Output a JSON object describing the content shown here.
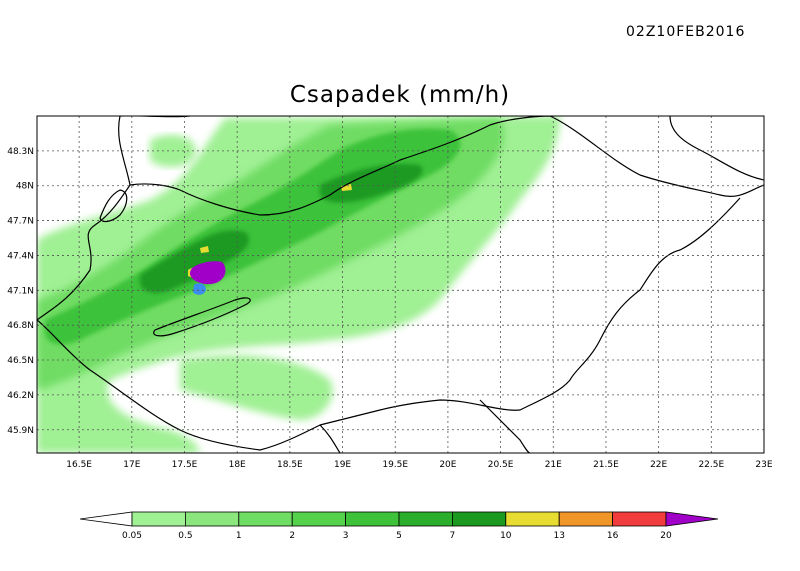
{
  "header": {
    "timestamp": "02Z10FEB2016",
    "title": "Csapadek (mm/h)"
  },
  "map": {
    "lon_range": [
      16.1,
      23.0
    ],
    "lat_range": [
      45.7,
      48.6
    ],
    "lat_ticks": [
      "48.3N",
      "48N",
      "47.7N",
      "47.4N",
      "47.1N",
      "46.8N",
      "46.5N",
      "46.2N",
      "45.9N"
    ],
    "lat_values": [
      48.3,
      48.0,
      47.7,
      47.4,
      47.1,
      46.8,
      46.5,
      46.2,
      45.9
    ],
    "lon_ticks": [
      "16.5E",
      "17E",
      "17.5E",
      "18E",
      "18.5E",
      "19E",
      "19.5E",
      "20E",
      "20.5E",
      "21E",
      "21.5E",
      "22E",
      "22.5E",
      "23E"
    ],
    "lon_values": [
      16.5,
      17.0,
      17.5,
      18.0,
      18.5,
      19.0,
      19.5,
      20.0,
      20.5,
      21.0,
      21.5,
      22.0,
      22.5,
      23.0
    ],
    "gridlines": true
  },
  "legend": {
    "labels": [
      "0.05",
      "0.5",
      "1",
      "2",
      "3",
      "5",
      "7",
      "10",
      "13",
      "16",
      "20"
    ],
    "colors": [
      "#a0f094",
      "#8ce67e",
      "#6fdc64",
      "#55d24c",
      "#3ec23a",
      "#2bae2c",
      "#1c9a20",
      "#e6dc32",
      "#f09628",
      "#f03c3c",
      "#a000c8"
    ],
    "low_color": "#ffffff"
  }
}
